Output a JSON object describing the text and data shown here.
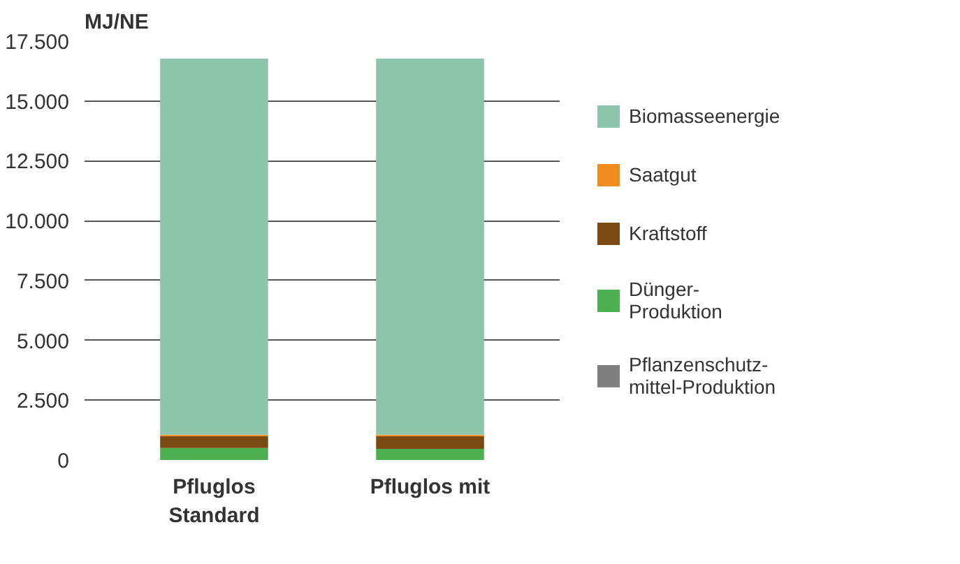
{
  "chart_data": {
    "type": "bar",
    "stacked": true,
    "ylabel": "MJ/NE",
    "categories": [
      "Pfluglos\nStandard",
      "Pfluglos mit"
    ],
    "series": [
      {
        "name": "Pflanzenschutz-\nmittel-Produktion",
        "color": "#7f7f7f",
        "values": [
          null,
          null
        ]
      },
      {
        "name": "Dünger-\nProduktion",
        "color": "#4caf50",
        "values": [
          500,
          470
        ]
      },
      {
        "name": "Kraftstoff",
        "color": "#7b4a12",
        "values": [
          500,
          530
        ]
      },
      {
        "name": "Saatgut",
        "color": "#f28c1e",
        "values": [
          60,
          60
        ]
      },
      {
        "name": "Biomasseenergie",
        "color": "#8cc5ab",
        "values": [
          15710,
          15710
        ]
      }
    ],
    "ylim": [
      0,
      17500
    ],
    "yticks": [
      {
        "value": 0,
        "label": "0"
      },
      {
        "value": 2500,
        "label": "2.500"
      },
      {
        "value": 5000,
        "label": "5.000"
      },
      {
        "value": 7500,
        "label": "7.500"
      },
      {
        "value": 10000,
        "label": "10.000"
      },
      {
        "value": 12500,
        "label": "12.500"
      },
      {
        "value": 15000,
        "label": "15.000"
      },
      {
        "value": 17500,
        "label": "17.500"
      }
    ],
    "grid": "y",
    "legend": "right"
  }
}
